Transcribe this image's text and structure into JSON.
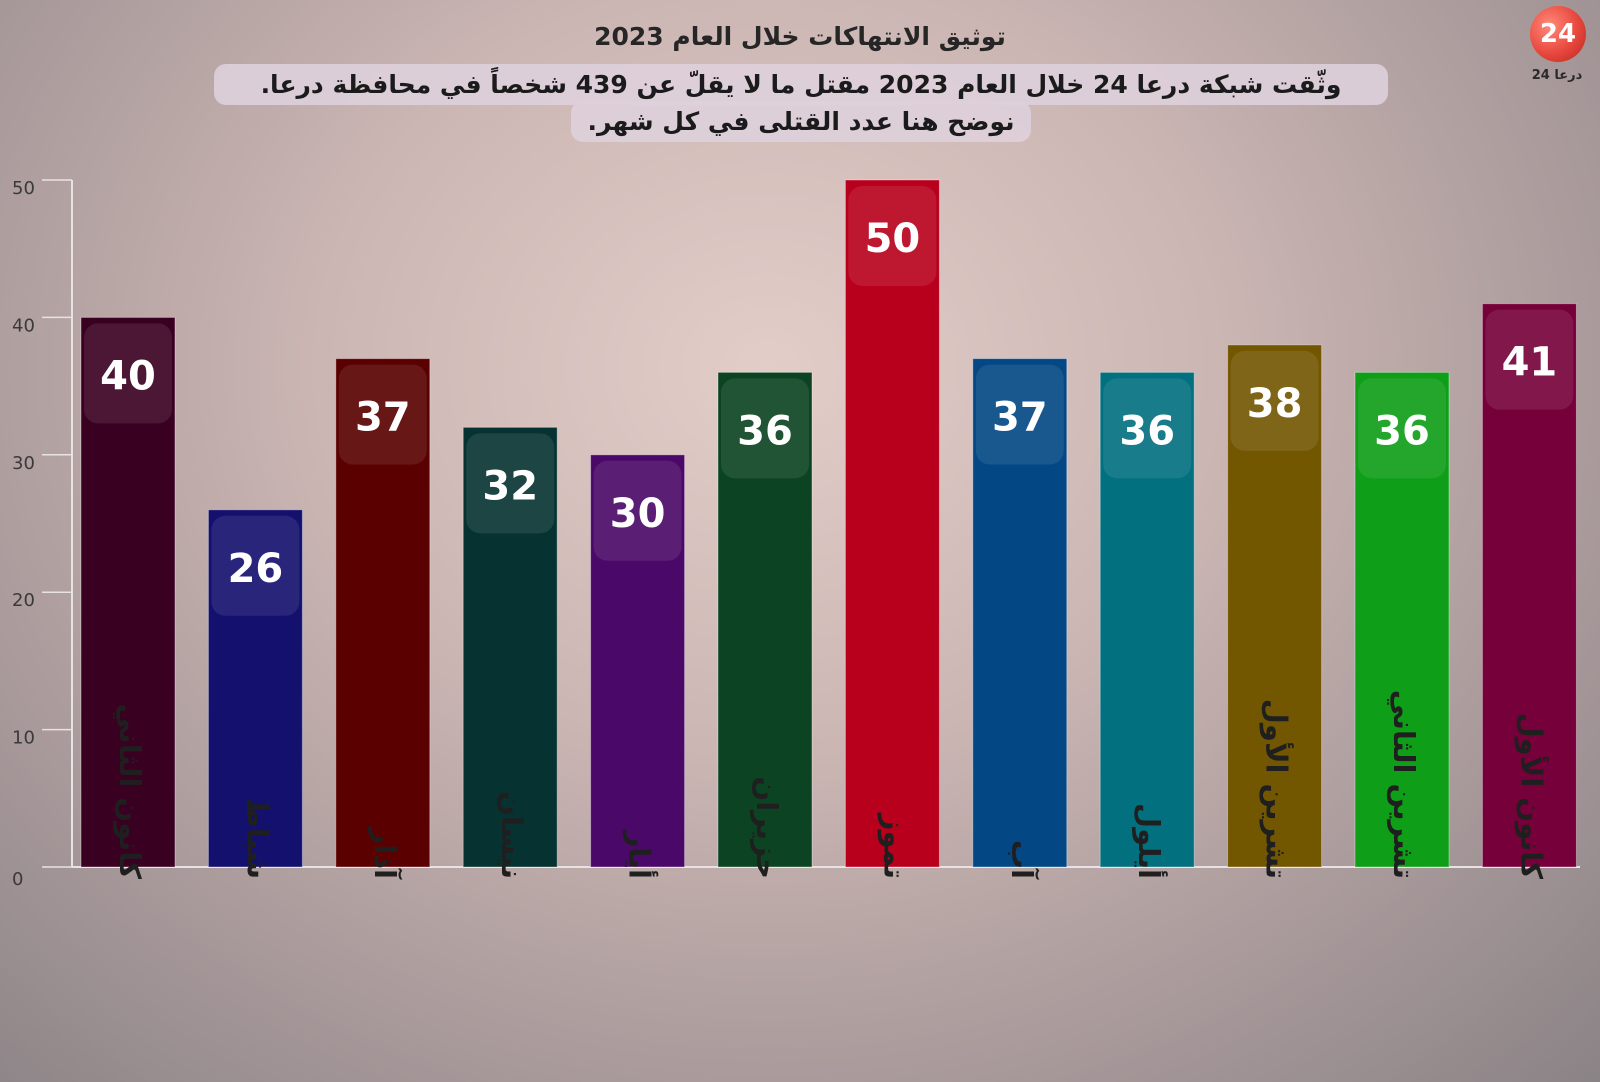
{
  "chart_data": {
    "type": "bar",
    "title": "توثيق الانتهاكات خلال العام 2023",
    "subtitle_lines": [
      "وثّقت شبكة درعا 24 خلال العام 2023 مقتل ما لا يقلّ عن 439 شخصاً في محافظة درعا.",
      "نوضح هنا عدد القتلى في كل شهر."
    ],
    "categories": [
      "كانون الثاني",
      "شباط",
      "آذار",
      "نيسان",
      "أيار",
      "حزيران",
      "تموز",
      "آب",
      "أيلول",
      "تشرين الأول",
      "تشرين الثاني",
      "كانون الأول"
    ],
    "values": [
      40,
      26,
      37,
      32,
      30,
      36,
      50,
      37,
      36,
      38,
      36,
      41
    ],
    "colors": [
      "#3a0022",
      "#14106e",
      "#5a0000",
      "#063332",
      "#4a0968",
      "#0c4322",
      "#b8001c",
      "#034784",
      "#03707f",
      "#735600",
      "#0f9e18",
      "#76003a"
    ],
    "ylim": [
      0,
      50
    ],
    "yticks": [
      0,
      10,
      20,
      30,
      40,
      50
    ],
    "grid": false,
    "data_labels": true
  },
  "logo": {
    "mark": "24",
    "text": "درعا 24"
  }
}
